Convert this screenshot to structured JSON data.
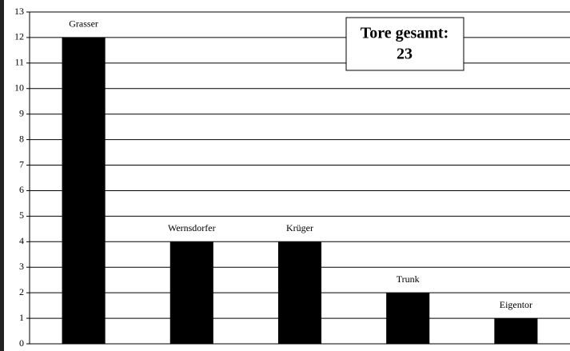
{
  "chart_data": {
    "type": "bar",
    "categories": [
      "Grasser",
      "Wernsdorfer",
      "Krüger",
      "Trunk",
      "Eigentor"
    ],
    "values": [
      12,
      4,
      4,
      2,
      1
    ],
    "color": "#000000",
    "ylim": [
      0,
      13
    ],
    "yticks": [
      0,
      1,
      2,
      3,
      4,
      5,
      6,
      7,
      8,
      9,
      10,
      11,
      12,
      13
    ],
    "grid": true,
    "annotation": [
      "Tore gesamt:",
      "23"
    ]
  }
}
